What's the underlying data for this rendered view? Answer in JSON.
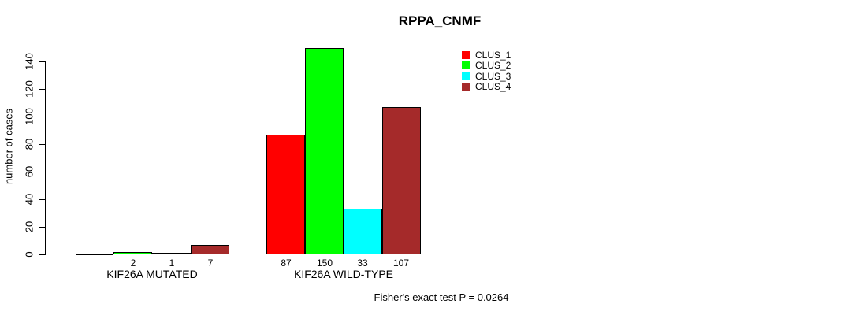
{
  "title": "RPPA_CNMF",
  "footer": "Fisher's exact test P = 0.0264",
  "y_axis": {
    "label": "number of cases"
  },
  "chart_data": {
    "type": "bar",
    "title": "RPPA_CNMF",
    "xlabel": "",
    "ylabel": "number of cases",
    "categories": [
      "KIF26A MUTATED",
      "KIF26A WILD-TYPE"
    ],
    "series": [
      {
        "name": "CLUS_1",
        "color": "#ff0000",
        "values": [
          0,
          87
        ]
      },
      {
        "name": "CLUS_2",
        "color": "#00ff00",
        "values": [
          2,
          150
        ]
      },
      {
        "name": "CLUS_3",
        "color": "#00ffff",
        "values": [
          1,
          33
        ]
      },
      {
        "name": "CLUS_4",
        "color": "#a52a2a",
        "values": [
          7,
          107
        ]
      }
    ],
    "bar_value_labels": [
      [
        "",
        "2",
        "1",
        "7"
      ],
      [
        "87",
        "150",
        "33",
        "107"
      ]
    ],
    "yticks": [
      0,
      20,
      40,
      60,
      80,
      100,
      120,
      140
    ],
    "ylim": [
      0,
      150
    ],
    "grid": false,
    "legend_position": "top-right",
    "legend_entries": [
      "CLUS_1",
      "CLUS_2",
      "CLUS_3",
      "CLUS_4"
    ],
    "annotation": "Fisher's exact test P = 0.0264"
  }
}
